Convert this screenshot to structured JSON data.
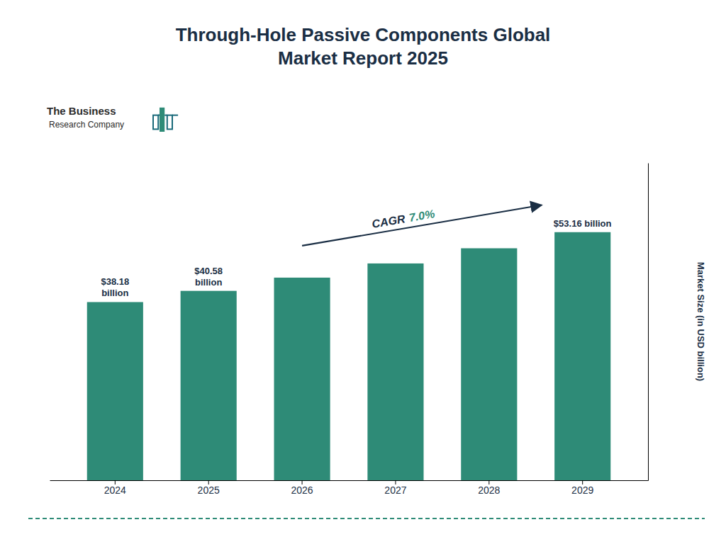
{
  "chart_data": {
    "type": "bar",
    "title": "Through-Hole Passive Components Global\nMarket Report 2025",
    "categories": [
      "2024",
      "2025",
      "2026",
      "2027",
      "2028",
      "2029"
    ],
    "values": [
      38.18,
      40.58,
      43.42,
      46.46,
      49.71,
      53.16
    ],
    "value_labels": [
      "$38.18\nbillion",
      "$40.58\nbillion",
      null,
      null,
      null,
      "$53.16 billion"
    ],
    "color": "#2e8b77",
    "ylabel": "Market Size (in USD billion)",
    "ylim": [
      0,
      68
    ],
    "yticks": [],
    "tick_labels": "x",
    "annotations": [
      "CAGR",
      "7.0%",
      "The Business",
      "Research Company"
    ]
  }
}
